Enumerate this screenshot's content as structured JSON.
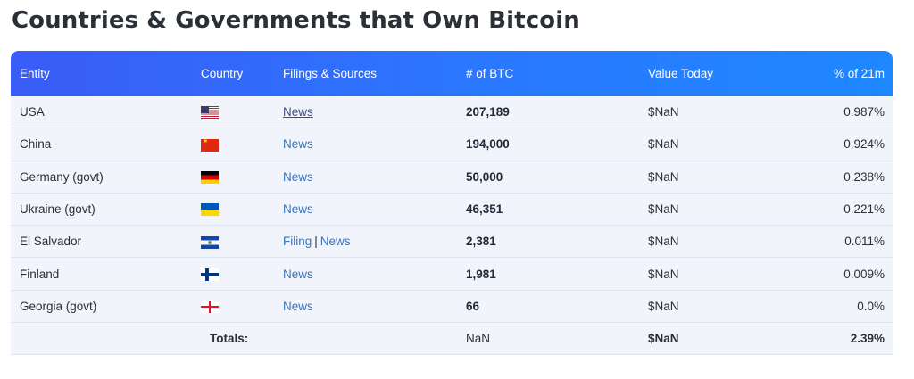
{
  "title": "Countries & Governments that Own Bitcoin",
  "columns": {
    "entity": "Entity",
    "country": "Country",
    "filings": "Filings & Sources",
    "btc": "# of BTC",
    "value": "Value Today",
    "pct": "% of 21m"
  },
  "rows": [
    {
      "entity": "USA",
      "flag": "us-flag-icon",
      "sources": [
        "News"
      ],
      "btc": "207,189",
      "value": "$NaN",
      "pct": "0.987%"
    },
    {
      "entity": "China",
      "flag": "china-flag-icon",
      "sources": [
        "News"
      ],
      "btc": "194,000",
      "value": "$NaN",
      "pct": "0.924%"
    },
    {
      "entity": "Germany (govt)",
      "flag": "germany-flag-icon",
      "sources": [
        "News"
      ],
      "btc": "50,000",
      "value": "$NaN",
      "pct": "0.238%"
    },
    {
      "entity": "Ukraine (govt)",
      "flag": "ukraine-flag-icon",
      "sources": [
        "News"
      ],
      "btc": "46,351",
      "value": "$NaN",
      "pct": "0.221%"
    },
    {
      "entity": "El Salvador",
      "flag": "el-salvador-flag-icon",
      "sources": [
        "Filing",
        "News"
      ],
      "source_separator": "|",
      "btc": "2,381",
      "value": "$NaN",
      "pct": "0.011%"
    },
    {
      "entity": "Finland",
      "flag": "finland-flag-icon",
      "sources": [
        "News"
      ],
      "btc": "1,981",
      "value": "$NaN",
      "pct": "0.009%"
    },
    {
      "entity": "Georgia (govt)",
      "flag": "georgia-flag-icon",
      "sources": [
        "News"
      ],
      "btc": "66",
      "value": "$NaN",
      "pct": "0.0%"
    }
  ],
  "totals": {
    "label": "Totals:",
    "btc": "NaN",
    "value": "$NaN",
    "pct": "2.39%"
  },
  "colors": {
    "header_gradient_start": "#3a5cf7",
    "header_gradient_end": "#1e88ff",
    "row_background": "#f1f4fb",
    "link": "#3a73b8"
  }
}
